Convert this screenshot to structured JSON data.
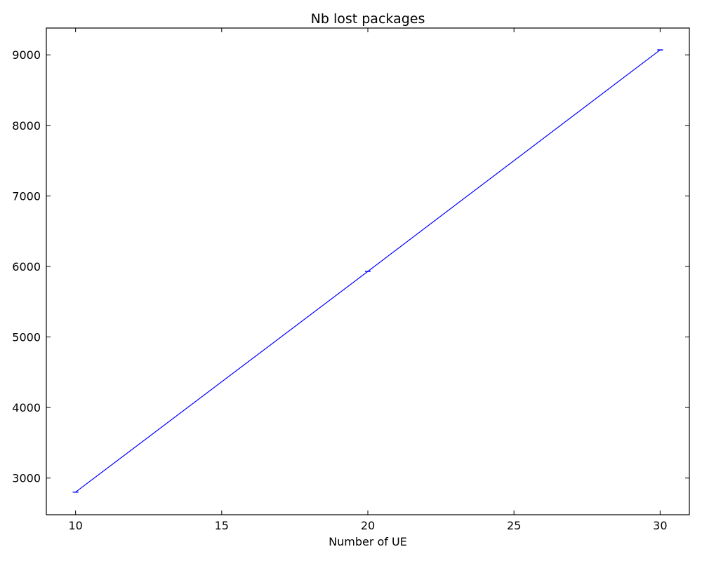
{
  "chart_data": {
    "type": "line",
    "title": "Nb lost packages",
    "xlabel": "Number of UE",
    "ylabel": "",
    "xlim": [
      9,
      31
    ],
    "ylim": [
      2480,
      9380
    ],
    "xticks": [
      10,
      15,
      20,
      25,
      30
    ],
    "yticks": [
      3000,
      4000,
      5000,
      6000,
      7000,
      8000,
      9000
    ],
    "grid": false,
    "series": [
      {
        "color": "#0000ff",
        "x": [
          10,
          20,
          30
        ],
        "y": [
          2800,
          5930,
          9070
        ],
        "error": [
          2,
          2,
          3
        ]
      }
    ]
  }
}
